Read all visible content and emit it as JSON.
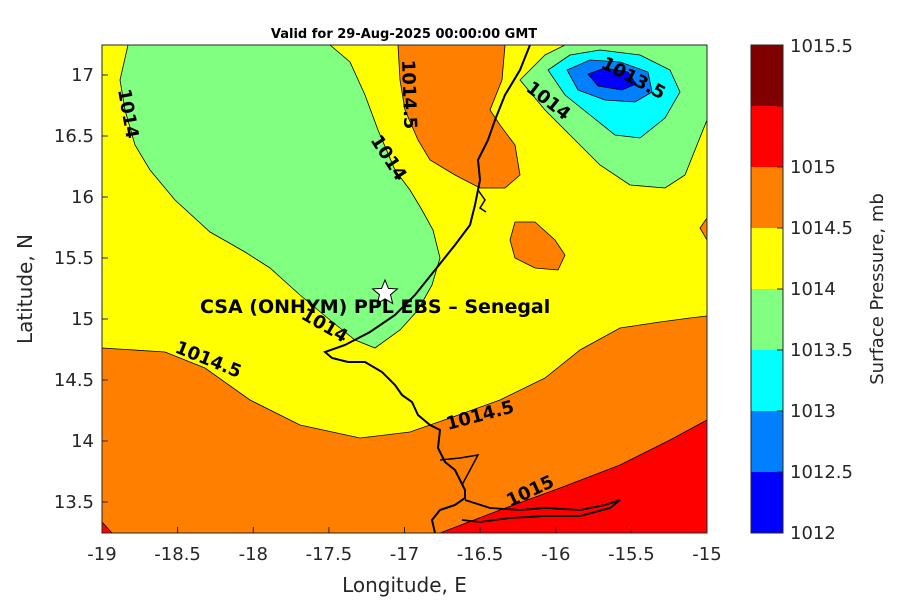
{
  "chart_data": {
    "type": "contour",
    "title": "Valid for 29-Aug-2025 00:00:00 GMT",
    "xlabel": "Longitude, E",
    "ylabel": "Latitude, N",
    "xlim": [
      -19,
      -15
    ],
    "ylim": [
      13.25,
      17.25
    ],
    "x_ticks": [
      "-19",
      "-18.5",
      "-18",
      "-17.5",
      "-17",
      "-16.5",
      "-16",
      "-15.5",
      "-15"
    ],
    "y_ticks": [
      "13.5",
      "14",
      "14.5",
      "15",
      "15.5",
      "16",
      "16.5",
      "17"
    ],
    "colorbar": {
      "label": "Surface Pressure, mb",
      "levels": [
        "1012",
        "1012.5",
        "1013",
        "1013.5",
        "1014",
        "1014.5",
        "1015",
        "1015.5"
      ],
      "colors": [
        "#0000ff",
        "#0080ff",
        "#00ffff",
        "#80ff80",
        "#ffff00",
        "#ff8000",
        "#ff0000",
        "#800000"
      ]
    },
    "contour_labels": [
      {
        "text": "1014",
        "lon": -18.82,
        "lat": 16.7
      },
      {
        "text": "1014.5",
        "lon": -17.05,
        "lat": 16.85
      },
      {
        "text": "1014",
        "lon": -16.9,
        "lat": 16.1
      },
      {
        "text": "1014",
        "lon": -17.25,
        "lat": 14.95
      },
      {
        "text": "1014.5",
        "lon": -18.3,
        "lat": 14.65
      },
      {
        "text": "1014.5",
        "lon": -16.4,
        "lat": 14.2
      },
      {
        "text": "1015",
        "lon": -16.1,
        "lat": 13.6
      },
      {
        "text": "1014",
        "lon": -16.1,
        "lat": 16.8
      },
      {
        "text": "1013.5",
        "lon": -15.68,
        "lat": 17.1
      }
    ],
    "station": {
      "name": "CSA (ONHYM) PPL EBS  – Senegal",
      "lon": -17.12,
      "lat": 15.22,
      "marker": "star"
    }
  }
}
